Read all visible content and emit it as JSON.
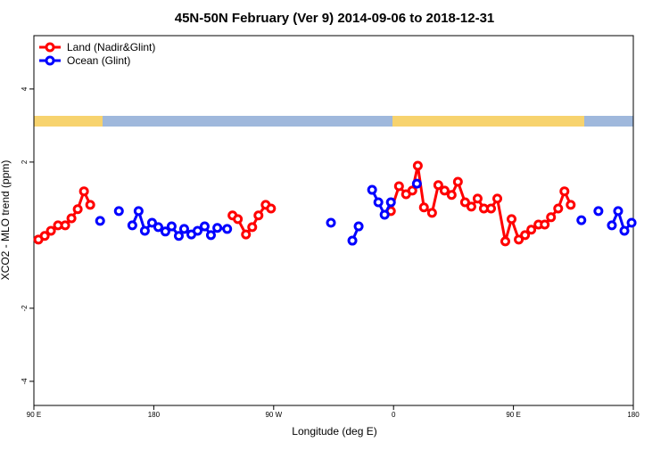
{
  "chart_data": {
    "type": "line",
    "title": "45N-50N February (Ver 9)   2014-09-06 to 2018-12-31",
    "x_label": "Longitude (deg E)",
    "y_label": "XCO2 - MLO trend (ppm)",
    "xlim": [
      90,
      540
    ],
    "ylim": [
      -4.66,
      5.46
    ],
    "xticks": [
      {
        "value": 90,
        "label": "90 E"
      },
      180,
      {
        "value": 270,
        "label": "90 W"
      },
      {
        "value": 360,
        "label": "0"
      },
      {
        "value": 450,
        "label": "90 E"
      },
      {
        "value": 540,
        "label": "180"
      }
    ],
    "yticks": [
      -4,
      -2,
      2,
      4
    ],
    "legend": "top-left",
    "series": [
      {
        "name": "Land (Nadir&Glint)",
        "color": "#ff0000",
        "x": [
          93.4,
          98.1,
          102.8,
          108.1,
          113.5,
          118.2,
          122.9,
          127.6,
          132.3,
          null,
          239.1,
          243.1,
          249.2,
          253.9,
          258.6,
          264.0,
          268.0,
          null,
          358.0,
          364.1,
          369.4,
          374.1,
          378.2,
          382.8,
          388.9,
          393.6,
          398.3,
          403.6,
          408.3,
          413.7,
          418.4,
          423.1,
          427.8,
          433.2,
          437.9,
          443.9,
          448.6,
          454.0,
          458.7,
          463.4,
          468.8,
          473.5,
          478.2,
          483.6,
          488.3,
          493.0
        ],
        "values": [
          -0.12,
          -0.02,
          0.12,
          0.27,
          0.27,
          0.46,
          0.71,
          1.2,
          0.83,
          null,
          0.54,
          0.44,
          0.02,
          0.22,
          0.54,
          0.83,
          0.73,
          null,
          0.66,
          1.34,
          1.12,
          1.22,
          1.9,
          0.76,
          0.61,
          1.37,
          1.22,
          1.1,
          1.46,
          0.9,
          0.78,
          1.0,
          0.73,
          0.73,
          1.0,
          -0.17,
          0.44,
          -0.12,
          0.0,
          0.15,
          0.29,
          0.29,
          0.49,
          0.73,
          1.2,
          0.83
        ]
      },
      {
        "name": "Ocean (Glint)",
        "color": "#0000ff",
        "x": [
          139.7,
          null,
          153.8,
          null,
          163.9,
          168.6,
          173.3,
          178.7,
          183.4,
          188.7,
          193.4,
          198.8,
          202.8,
          208.2,
          212.9,
          218.2,
          222.9,
          227.7,
          235.1,
          null,
          313.0,
          null,
          329.1,
          333.8,
          null,
          343.9,
          348.6,
          353.3,
          358.0,
          null,
          377.5,
          null,
          501.0,
          null,
          513.8,
          null,
          523.9,
          528.6,
          533.3,
          538.7
        ],
        "values": [
          0.39,
          null,
          0.66,
          null,
          0.27,
          0.66,
          0.12,
          0.34,
          0.22,
          0.1,
          0.24,
          -0.02,
          0.17,
          0.02,
          0.12,
          0.24,
          0.0,
          0.2,
          0.17,
          null,
          0.34,
          null,
          -0.15,
          0.24,
          null,
          1.24,
          0.9,
          0.56,
          0.9,
          null,
          1.41,
          null,
          0.41,
          null,
          0.66,
          null,
          0.27,
          0.66,
          0.12,
          0.34
        ]
      }
    ]
  }
}
